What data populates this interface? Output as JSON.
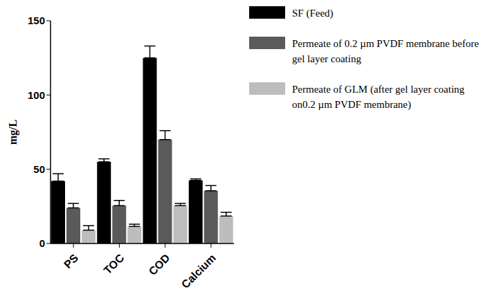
{
  "chart_data": {
    "type": "bar",
    "y_label": "mg/L",
    "categories": [
      "PS",
      "TOC",
      "COD",
      "Calcium"
    ],
    "series": [
      {
        "name": "SF (Feed)",
        "color": "#000000",
        "values": [
          42,
          55,
          125,
          42.5
        ],
        "errors": [
          5,
          2,
          8,
          1
        ]
      },
      {
        "name": "Permeate of 0.2 µm PVDF membrane before gel layer coating",
        "color": "#5a5a5a",
        "values": [
          24,
          25.5,
          70,
          35.5
        ],
        "errors": [
          3,
          3.5,
          6,
          3.5
        ]
      },
      {
        "name": "Permeate of GLM (after gel layer coating on0.2 µm PVDF membrane)",
        "color": "#bdbdbd",
        "values": [
          9,
          11.5,
          25.5,
          18.5
        ],
        "errors": [
          3,
          1.5,
          1.5,
          2.5
        ]
      }
    ],
    "ylim": [
      0,
      150
    ],
    "yticks": [
      0,
      50,
      100,
      150
    ],
    "grid": false,
    "legend": "right"
  }
}
